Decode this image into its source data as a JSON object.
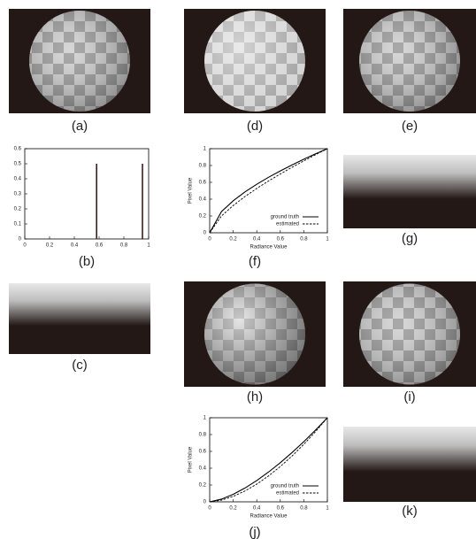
{
  "panel_labels": {
    "a": "(a)",
    "c": "(c)",
    "d": "(d)",
    "e": "(e)",
    "g": "(g)",
    "h": "(h)",
    "i": "(i)",
    "k": "(k)"
  },
  "chart_data": [
    {
      "type": "bar",
      "panel_label": "(b)",
      "x": [
        0.58,
        0.95
      ],
      "values": [
        0.5,
        0.5
      ],
      "color": "#3a2020",
      "xlim": [
        0,
        1
      ],
      "xticks": [
        0,
        0.2,
        0.4,
        0.6,
        0.8,
        1
      ],
      "ylim": [
        0,
        0.6
      ],
      "yticks": [
        0,
        0.1,
        0.2,
        0.3,
        0.4,
        0.5,
        0.6
      ]
    },
    {
      "type": "line",
      "panel_label": "(f)",
      "xlabel": "Radiance Value",
      "ylabel": "Pixel Value",
      "legend": "lower right",
      "x": [
        0,
        0.1,
        0.2,
        0.3,
        0.4,
        0.5,
        0.6,
        0.7,
        0.8,
        0.9,
        1
      ],
      "series": [
        {
          "name": "ground truth",
          "color": "#000000",
          "style": "solid",
          "values": [
            0,
            0.251,
            0.381,
            0.486,
            0.577,
            0.66,
            0.736,
            0.807,
            0.875,
            0.939,
            1
          ]
        },
        {
          "name": "estimated",
          "color": "#000000",
          "style": "dashed",
          "values": [
            0,
            0.2,
            0.324,
            0.431,
            0.527,
            0.616,
            0.699,
            0.779,
            0.855,
            0.929,
            1
          ]
        }
      ],
      "xlim": [
        0,
        1
      ],
      "xticks": [
        0,
        0.2,
        0.4,
        0.6,
        0.8,
        1
      ],
      "ylim": [
        0,
        1
      ],
      "yticks": [
        0,
        0.2,
        0.4,
        0.6,
        0.8,
        1
      ]
    },
    {
      "type": "line",
      "panel_label": "(j)",
      "xlabel": "Radiance Value",
      "ylabel": "Pixel Value",
      "legend": "lower right",
      "x": [
        0,
        0.1,
        0.2,
        0.3,
        0.4,
        0.5,
        0.6,
        0.7,
        0.8,
        0.9,
        1
      ],
      "series": [
        {
          "name": "ground truth",
          "color": "#000000",
          "style": "solid",
          "values": [
            0,
            0.032,
            0.089,
            0.164,
            0.253,
            0.354,
            0.465,
            0.586,
            0.716,
            0.854,
            1
          ]
        },
        {
          "name": "estimated",
          "color": "#000000",
          "style": "dashed",
          "values": [
            0,
            0.02,
            0.065,
            0.129,
            0.211,
            0.308,
            0.42,
            0.545,
            0.684,
            0.836,
            1
          ]
        }
      ],
      "xlim": [
        0,
        1
      ],
      "xticks": [
        0,
        0.2,
        0.4,
        0.6,
        0.8,
        1
      ],
      "ylim": [
        0,
        1
      ],
      "yticks": [
        0,
        0.2,
        0.4,
        0.6,
        0.8,
        1
      ]
    }
  ]
}
